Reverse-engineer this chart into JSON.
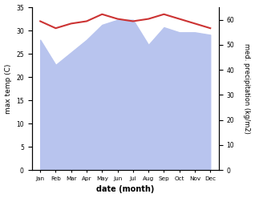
{
  "months": [
    "Jan",
    "Feb",
    "Mar",
    "Apr",
    "May",
    "Jun",
    "Jul",
    "Aug",
    "Sep",
    "Oct",
    "Nov",
    "Dec"
  ],
  "max_temp": [
    32.0,
    30.5,
    31.5,
    32.0,
    33.5,
    32.5,
    32.0,
    32.5,
    33.5,
    32.5,
    31.5,
    30.5
  ],
  "precipitation": [
    52,
    42,
    47,
    52,
    58,
    60,
    60,
    50,
    57,
    55,
    55,
    54
  ],
  "temp_color": "#cc3333",
  "precip_fill_color": "#b8c4ee",
  "ylabel_left": "max temp (C)",
  "ylabel_right": "med. precipitation (kg/m2)",
  "xlabel": "date (month)",
  "ylim_left": [
    0,
    35
  ],
  "ylim_right": [
    0,
    65
  ],
  "yticks_left": [
    0,
    5,
    10,
    15,
    20,
    25,
    30,
    35
  ],
  "yticks_right": [
    0,
    10,
    20,
    30,
    40,
    50,
    60
  ],
  "background_color": "#ffffff"
}
